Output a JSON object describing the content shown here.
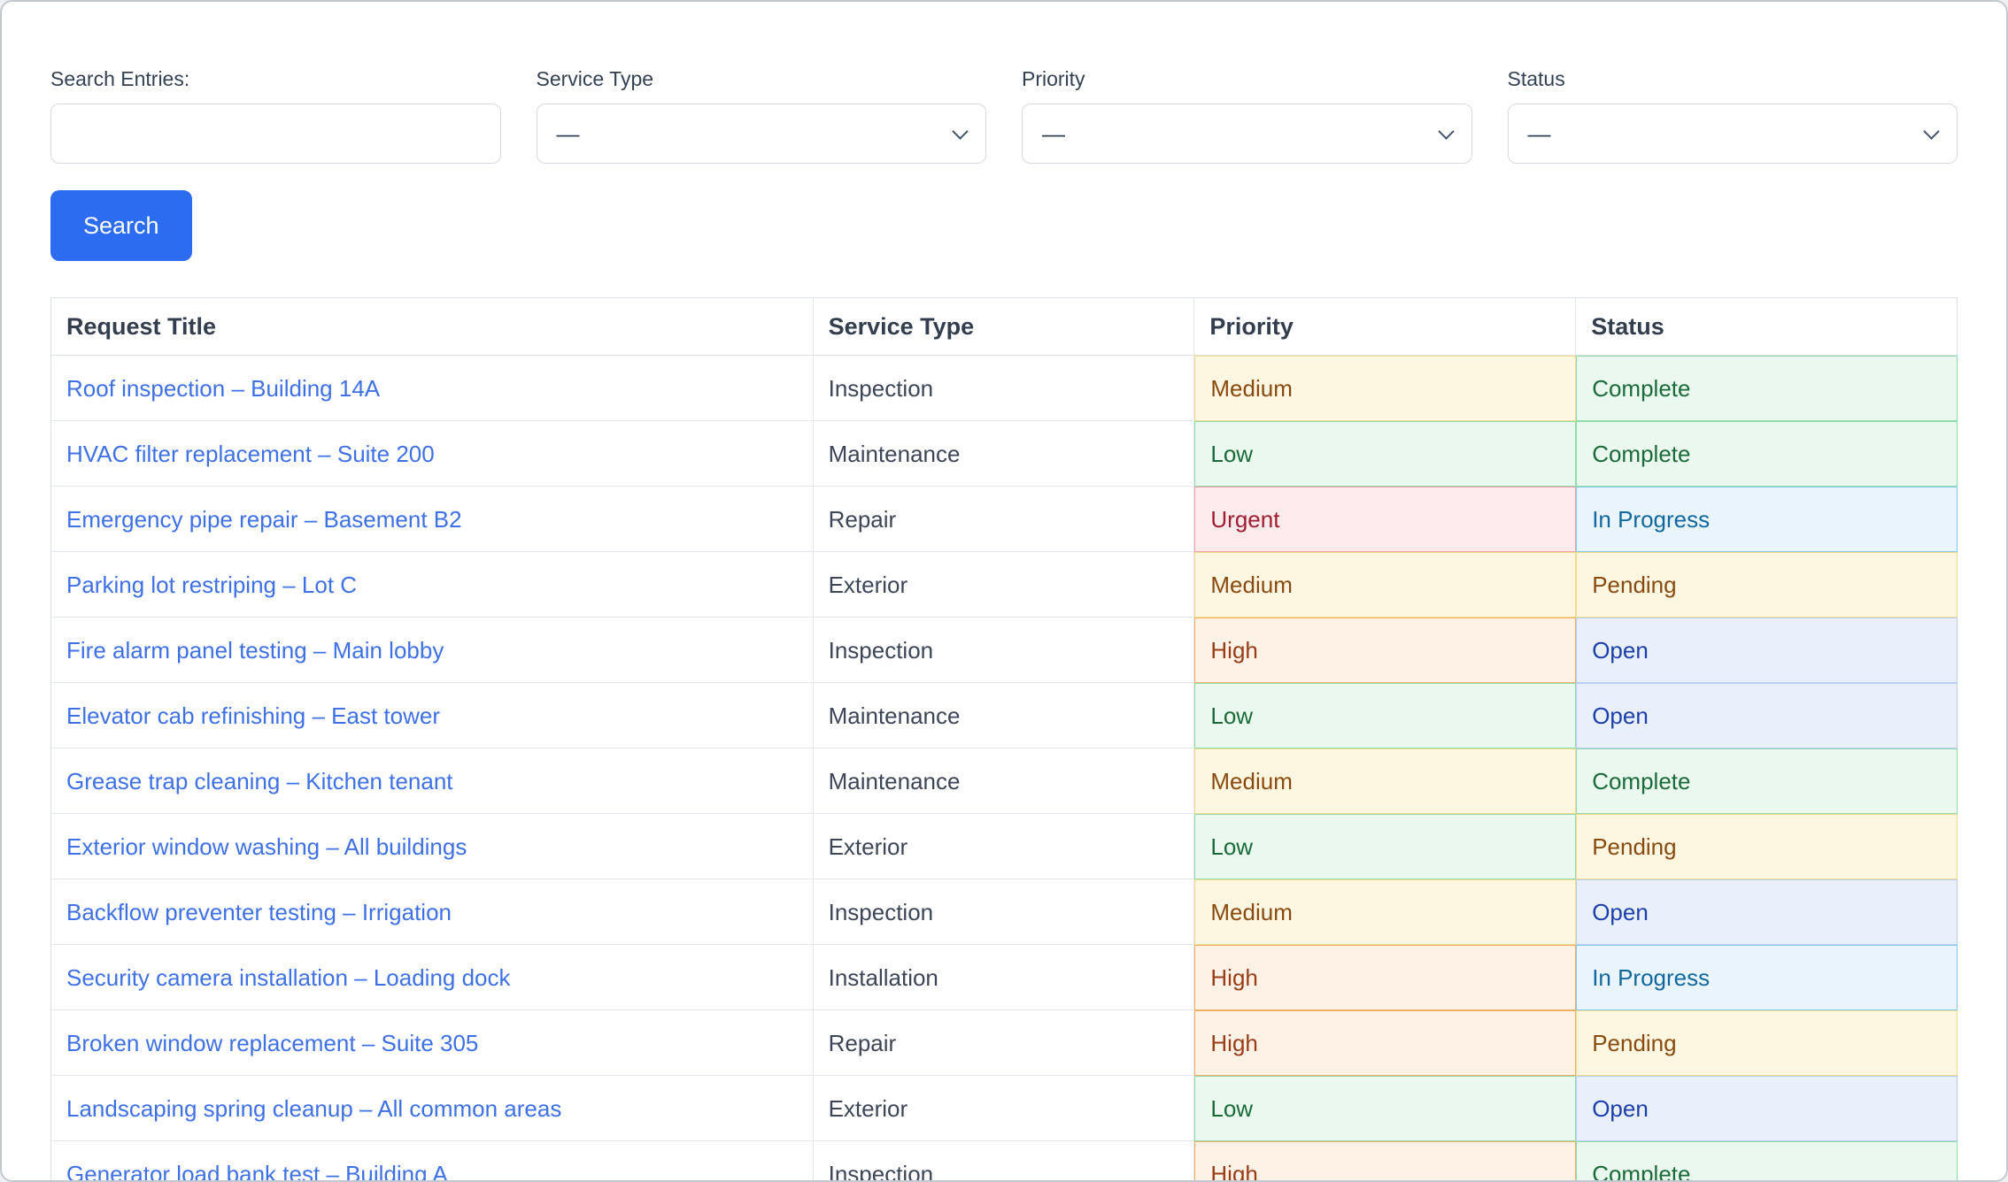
{
  "filters": {
    "search": {
      "label": "Search Entries:",
      "value": "",
      "placeholder": ""
    },
    "selects": [
      {
        "label": "Service Type",
        "value": "—"
      },
      {
        "label": "Priority",
        "value": "—"
      },
      {
        "label": "Status",
        "value": "—"
      }
    ],
    "button_label": "Search"
  },
  "table": {
    "columns": [
      "Request Title",
      "Service Type",
      "Priority",
      "Status"
    ],
    "rows": [
      {
        "title": "Roof inspection – Building 14A",
        "service_type": "Inspection",
        "priority": "Medium",
        "status": "Complete"
      },
      {
        "title": "HVAC filter replacement – Suite 200",
        "service_type": "Maintenance",
        "priority": "Low",
        "status": "Complete"
      },
      {
        "title": "Emergency pipe repair – Basement B2",
        "service_type": "Repair",
        "priority": "Urgent",
        "status": "In Progress"
      },
      {
        "title": "Parking lot restriping – Lot C",
        "service_type": "Exterior",
        "priority": "Medium",
        "status": "Pending"
      },
      {
        "title": "Fire alarm panel testing – Main lobby",
        "service_type": "Inspection",
        "priority": "High",
        "status": "Open"
      },
      {
        "title": "Elevator cab refinishing – East tower",
        "service_type": "Maintenance",
        "priority": "Low",
        "status": "Open"
      },
      {
        "title": "Grease trap cleaning – Kitchen tenant",
        "service_type": "Maintenance",
        "priority": "Medium",
        "status": "Complete"
      },
      {
        "title": "Exterior window washing – All buildings",
        "service_type": "Exterior",
        "priority": "Low",
        "status": "Pending"
      },
      {
        "title": "Backflow preventer testing – Irrigation",
        "service_type": "Inspection",
        "priority": "Medium",
        "status": "Open"
      },
      {
        "title": "Security camera installation – Loading dock",
        "service_type": "Installation",
        "priority": "High",
        "status": "In Progress"
      },
      {
        "title": "Broken window replacement – Suite 305",
        "service_type": "Repair",
        "priority": "High",
        "status": "Pending"
      },
      {
        "title": "Landscaping spring cleanup – All common areas",
        "service_type": "Exterior",
        "priority": "Low",
        "status": "Open"
      },
      {
        "title": "Generator load bank test – Building A",
        "service_type": "Inspection",
        "priority": "High",
        "status": "Complete"
      }
    ]
  },
  "colors": {
    "link": "#3e70e6",
    "button": "#2b6cf0",
    "priority": {
      "Low": {
        "bg": "#eaf8ef",
        "text": "#1a6b39",
        "border": "#90dcaa"
      },
      "Medium": {
        "bg": "#fdf7e2",
        "text": "#8a4a0f",
        "border": "#f3dd8d"
      },
      "High": {
        "bg": "#fdf2e5",
        "text": "#9a3c15",
        "border": "#f0af62"
      },
      "Urgent": {
        "bg": "#fceaec",
        "text": "#a01d30",
        "border": "#f2a1a8"
      }
    },
    "status": {
      "Complete": {
        "bg": "#eaf8ef",
        "text": "#1a6b39",
        "border": "#90dcaa"
      },
      "In Progress": {
        "bg": "#e9f4fd",
        "text": "#10689f",
        "border": "#85c8ec"
      },
      "Pending": {
        "bg": "#fdf7e2",
        "text": "#8a4a0f",
        "border": "#f3dd8d"
      },
      "Open": {
        "bg": "#e9f0fb",
        "text": "#1c3fae",
        "border": "#b7cdf4"
      }
    }
  }
}
